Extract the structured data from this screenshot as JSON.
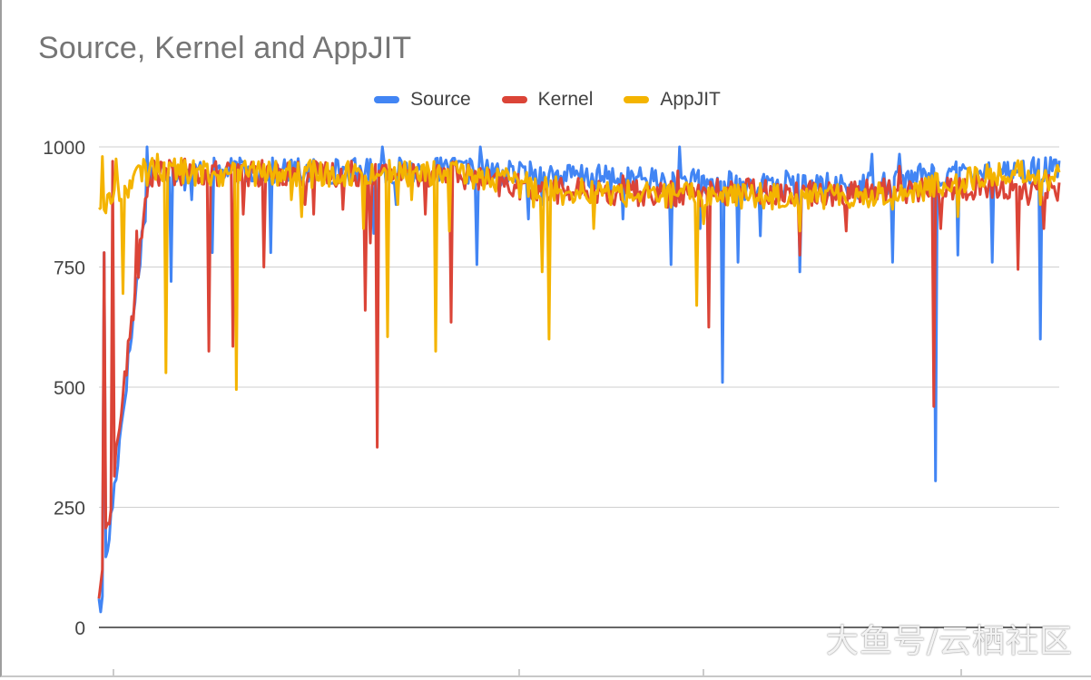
{
  "chart_data": {
    "type": "line",
    "title": "Source, Kernel and AppJIT",
    "xlabel": "",
    "ylabel": "",
    "ylim": [
      0,
      1000
    ],
    "yticks": [
      0,
      250,
      500,
      750,
      1000
    ],
    "legend_position": "top-center",
    "grid": true,
    "x_count": 240,
    "series": [
      {
        "name": "Source",
        "color": "#4285f4",
        "base": [
          0,
          950,
          950,
          950,
          950,
          950,
          950,
          950,
          945,
          940,
          935,
          930,
          925,
          920,
          918,
          918,
          935,
          950,
          950,
          952
        ],
        "spikes": [
          [
            0,
            60
          ],
          [
            3,
            780
          ],
          [
            28,
            1000
          ],
          [
            42,
            720
          ],
          [
            50,
            910
          ],
          [
            54,
            890
          ],
          [
            66,
            780
          ],
          [
            100,
            780
          ],
          [
            150,
            920
          ],
          [
            160,
            820
          ],
          [
            162,
            750
          ],
          [
            165,
            1000
          ],
          [
            173,
            880
          ],
          [
            198,
            930
          ],
          [
            205,
            970
          ],
          [
            210,
            970
          ],
          [
            217,
            970
          ],
          [
            220,
            755
          ],
          [
            222,
            1000
          ],
          [
            250,
            850
          ],
          [
            258,
            880
          ],
          [
            260,
            930
          ],
          [
            305,
            850
          ],
          [
            333,
            755
          ],
          [
            336,
            890
          ],
          [
            338,
            1000
          ],
          [
            350,
            830
          ],
          [
            363,
            510
          ],
          [
            372,
            760
          ],
          [
            376,
            890
          ],
          [
            385,
            815
          ],
          [
            392,
            935
          ],
          [
            400,
            950
          ],
          [
            408,
            740
          ],
          [
            415,
            930
          ],
          [
            425,
            900
          ],
          [
            450,
            985
          ],
          [
            460,
            930
          ],
          [
            462,
            760
          ],
          [
            466,
            985
          ],
          [
            473,
            950
          ],
          [
            487,
            305
          ],
          [
            490,
            920
          ],
          [
            500,
            775
          ],
          [
            505,
            955
          ],
          [
            513,
            950
          ],
          [
            520,
            760
          ],
          [
            540,
            930
          ],
          [
            548,
            600
          ],
          [
            555,
            950
          ]
        ]
      },
      {
        "name": "Kernel",
        "color": "#db4437",
        "base": [
          60,
          945,
          945,
          945,
          945,
          945,
          945,
          945,
          920,
          910,
          905,
          900,
          905,
          910,
          905,
          905,
          910,
          915,
          915,
          915
        ],
        "spikes": [
          [
            0,
            60
          ],
          [
            3,
            780
          ],
          [
            8,
            970
          ],
          [
            22,
            825
          ],
          [
            50,
            975
          ],
          [
            64,
            575
          ],
          [
            70,
            950
          ],
          [
            78,
            585
          ],
          [
            84,
            860
          ],
          [
            96,
            750
          ],
          [
            120,
            880
          ],
          [
            125,
            860
          ],
          [
            142,
            870
          ],
          [
            155,
            660
          ],
          [
            158,
            800
          ],
          [
            162,
            375
          ],
          [
            175,
            950
          ],
          [
            190,
            860
          ],
          [
            205,
            635
          ],
          [
            228,
            920
          ],
          [
            265,
            930
          ],
          [
            283,
            900
          ],
          [
            305,
            940
          ],
          [
            313,
            930
          ],
          [
            337,
            950
          ],
          [
            355,
            625
          ],
          [
            372,
            905
          ],
          [
            400,
            920
          ],
          [
            408,
            775
          ],
          [
            428,
            920
          ],
          [
            435,
            825
          ],
          [
            460,
            930
          ],
          [
            466,
            960
          ],
          [
            480,
            900
          ],
          [
            486,
            460
          ],
          [
            488,
            930
          ],
          [
            490,
            830
          ],
          [
            505,
            890
          ],
          [
            510,
            900
          ],
          [
            535,
            745
          ],
          [
            541,
            880
          ],
          [
            550,
            830
          ],
          [
            555,
            915
          ]
        ]
      },
      {
        "name": "AppJIT",
        "color": "#f4b400",
        "base": [
          870,
          960,
          945,
          945,
          945,
          945,
          945,
          945,
          930,
          915,
          905,
          900,
          900,
          898,
          898,
          900,
          905,
          930,
          945,
          945
        ],
        "spikes": [
          [
            0,
            870
          ],
          [
            2,
            980
          ],
          [
            10,
            975
          ],
          [
            14,
            695
          ],
          [
            28,
            920
          ],
          [
            39,
            530
          ],
          [
            56,
            920
          ],
          [
            76,
            945
          ],
          [
            80,
            495
          ],
          [
            86,
            945
          ],
          [
            112,
            890
          ],
          [
            118,
            855
          ],
          [
            124,
            915
          ],
          [
            142,
            940
          ],
          [
            154,
            830
          ],
          [
            168,
            605
          ],
          [
            174,
            880
          ],
          [
            182,
            890
          ],
          [
            196,
            575
          ],
          [
            204,
            825
          ],
          [
            245,
            895
          ],
          [
            253,
            875
          ],
          [
            258,
            740
          ],
          [
            262,
            600
          ],
          [
            270,
            880
          ],
          [
            288,
            830
          ],
          [
            320,
            895
          ],
          [
            348,
            670
          ],
          [
            352,
            840
          ],
          [
            362,
            905
          ],
          [
            395,
            920
          ],
          [
            408,
            825
          ],
          [
            428,
            900
          ],
          [
            448,
            875
          ],
          [
            462,
            870
          ],
          [
            500,
            855
          ],
          [
            520,
            920
          ],
          [
            548,
            880
          ],
          [
            553,
            910
          ]
        ]
      }
    ]
  }
}
